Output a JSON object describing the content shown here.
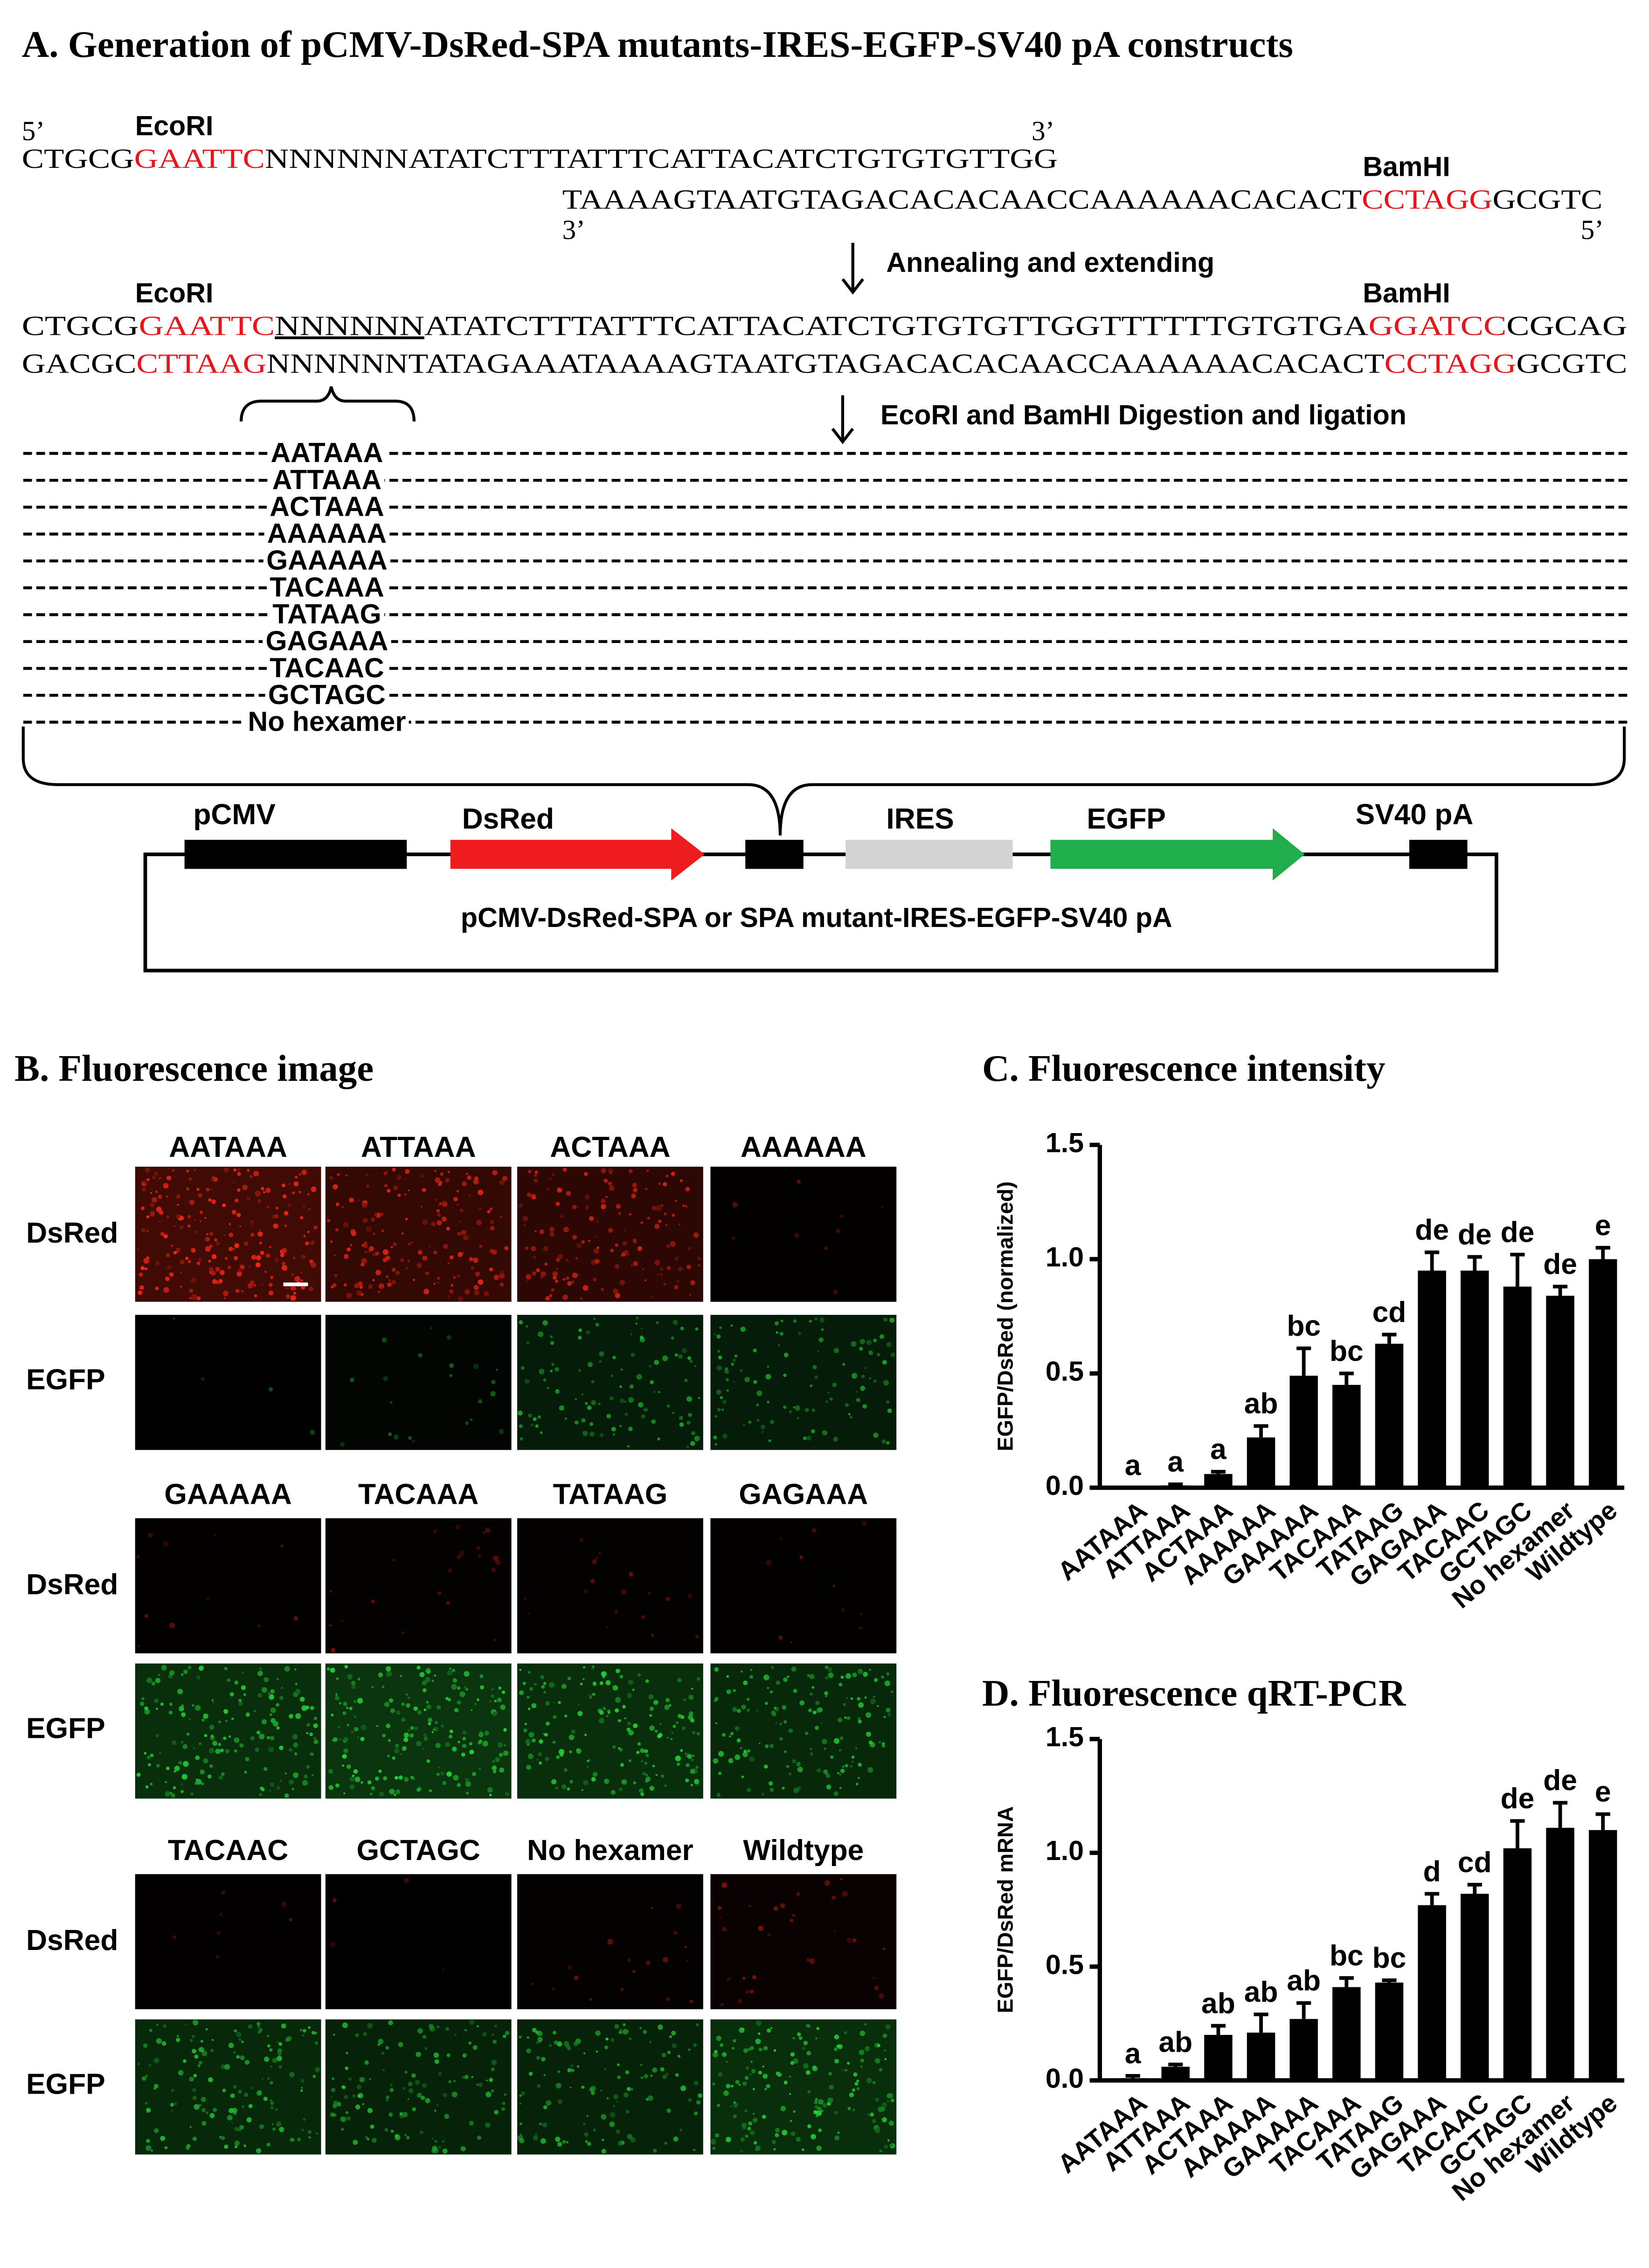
{
  "panel_a": {
    "title": "A. Generation of pCMV-DsRed-SPA mutants-IRES-EGFP-SV40 pA constructs",
    "strand_top": {
      "five_prime": "5’",
      "site_label": "EcoRI",
      "left": "CTGCG",
      "site": "GAATTC",
      "right": "NNNNNNATATCTTTATTTCATTACATCTGTGTGTTGG",
      "three_prime": "3’"
    },
    "strand_bottom": {
      "site_label": "BamHI",
      "left": "TAAAAGTAATGTAGACACACAACCAAAAAACACACT",
      "site": "CCTAGG",
      "right": "GCGTC",
      "three_prime": "3’",
      "five_prime": "5’"
    },
    "step1": "Annealing and extending",
    "duplex": {
      "left_label": "EcoRI",
      "right_label": "BamHI",
      "top": [
        "CTGCG",
        "GAATTC",
        "NNNNNN",
        "ATATCTTTATTTCATTACATCTGTGTGTTGGTTTTTTGTGTGA",
        "GGATCC",
        "CGCAG"
      ],
      "bottom": [
        "GACGC",
        "CTTAAG",
        "NNNNNNTATAGAAATAAAAGTAATGTAGACACACAACCAAAAAACACACT",
        "CCTAGG",
        "GCGTC"
      ]
    },
    "step2": "EcoRI and BamHI Digestion and ligation",
    "hexamers": [
      "AATAAA",
      "ATTAAA",
      "ACTAAA",
      "AAAAAA",
      "GAAAAA",
      "TACAAA",
      "TATAAG",
      "GAGAAA",
      "TACAAC",
      "GCTAGC",
      "No  hexamer"
    ],
    "construct": {
      "elements": [
        "pCMV",
        "DsRed",
        "IRES",
        "EGFP",
        "SV40 pA"
      ],
      "caption": "pCMV-DsRed-SPA or SPA mutant-IRES-EGFP-SV40 pA"
    }
  },
  "panel_b": {
    "title": "B. Fluorescence image",
    "row_labels": [
      "DsRed",
      "EGFP"
    ],
    "groups": [
      [
        "AATAAA",
        "ATTAAA",
        "ACTAAA",
        "AAAAAA"
      ],
      [
        "GAAAAA",
        "TACAAA",
        "TATAAG",
        "GAGAAA"
      ],
      [
        "TACAAC",
        "GCTAGC",
        "No hexamer",
        "Wildtype"
      ]
    ]
  },
  "chart_data": [
    {
      "type": "bar",
      "title": "C. Fluorescence  intensity",
      "y_label": "EGFP/DsRed (normalized)",
      "categories": [
        "AATAAA",
        "ATTAAA",
        "ACTAAA",
        "AAAAAA",
        "GAAAAA",
        "TACAAA",
        "TATAAG",
        "GAGAAA",
        "TACAAC",
        "GCTAGC",
        "No hexamer",
        "Wildtype"
      ],
      "values": [
        0,
        0.01,
        0.06,
        0.22,
        0.49,
        0.45,
        0.63,
        0.95,
        0.95,
        0.88,
        0.84,
        1.0
      ],
      "errors": [
        0,
        0.005,
        0.01,
        0.05,
        0.12,
        0.05,
        0.04,
        0.08,
        0.06,
        0.14,
        0.04,
        0.05
      ],
      "annotations": [
        "a",
        "a",
        "a",
        "ab",
        "bc",
        "bc",
        "cd",
        "de",
        "de",
        "de",
        "de",
        "e"
      ],
      "color": "#000000",
      "ylim": [
        0,
        1.5
      ],
      "yticks": [
        {
          "value": 0,
          "label": "0.0"
        },
        0.5,
        {
          "value": 1,
          "label": "1.0"
        },
        1.5
      ]
    },
    {
      "type": "bar",
      "title": "D. Fluorescence qRT-PCR",
      "y_label": "EGFP/DsRed mRNA",
      "categories": [
        "AATAAA",
        "ATTAAA",
        "ACTAAA",
        "AAAAAA",
        "GAAAAA",
        "TACAAA",
        "TATAAG",
        "GAGAAA",
        "TACAAC",
        "GCTAGC",
        "No hexamer",
        "Wildtype"
      ],
      "values": [
        0.01,
        0.06,
        0.2,
        0.21,
        0.27,
        0.41,
        0.43,
        0.77,
        0.82,
        1.02,
        1.11,
        1.1
      ],
      "errors": [
        0.01,
        0.01,
        0.04,
        0.08,
        0.07,
        0.04,
        0.01,
        0.05,
        0.04,
        0.12,
        0.11,
        0.07
      ],
      "annotations": [
        "a",
        "ab",
        "ab",
        "ab",
        "ab",
        "bc",
        "bc",
        "d",
        "cd",
        "de",
        "de",
        "e"
      ],
      "color": "#000000",
      "ylim": [
        0,
        1.5
      ],
      "yticks": [
        {
          "value": 0,
          "label": "0.0"
        },
        0.5,
        {
          "value": 1,
          "label": "1.0"
        },
        1.5
      ]
    }
  ]
}
